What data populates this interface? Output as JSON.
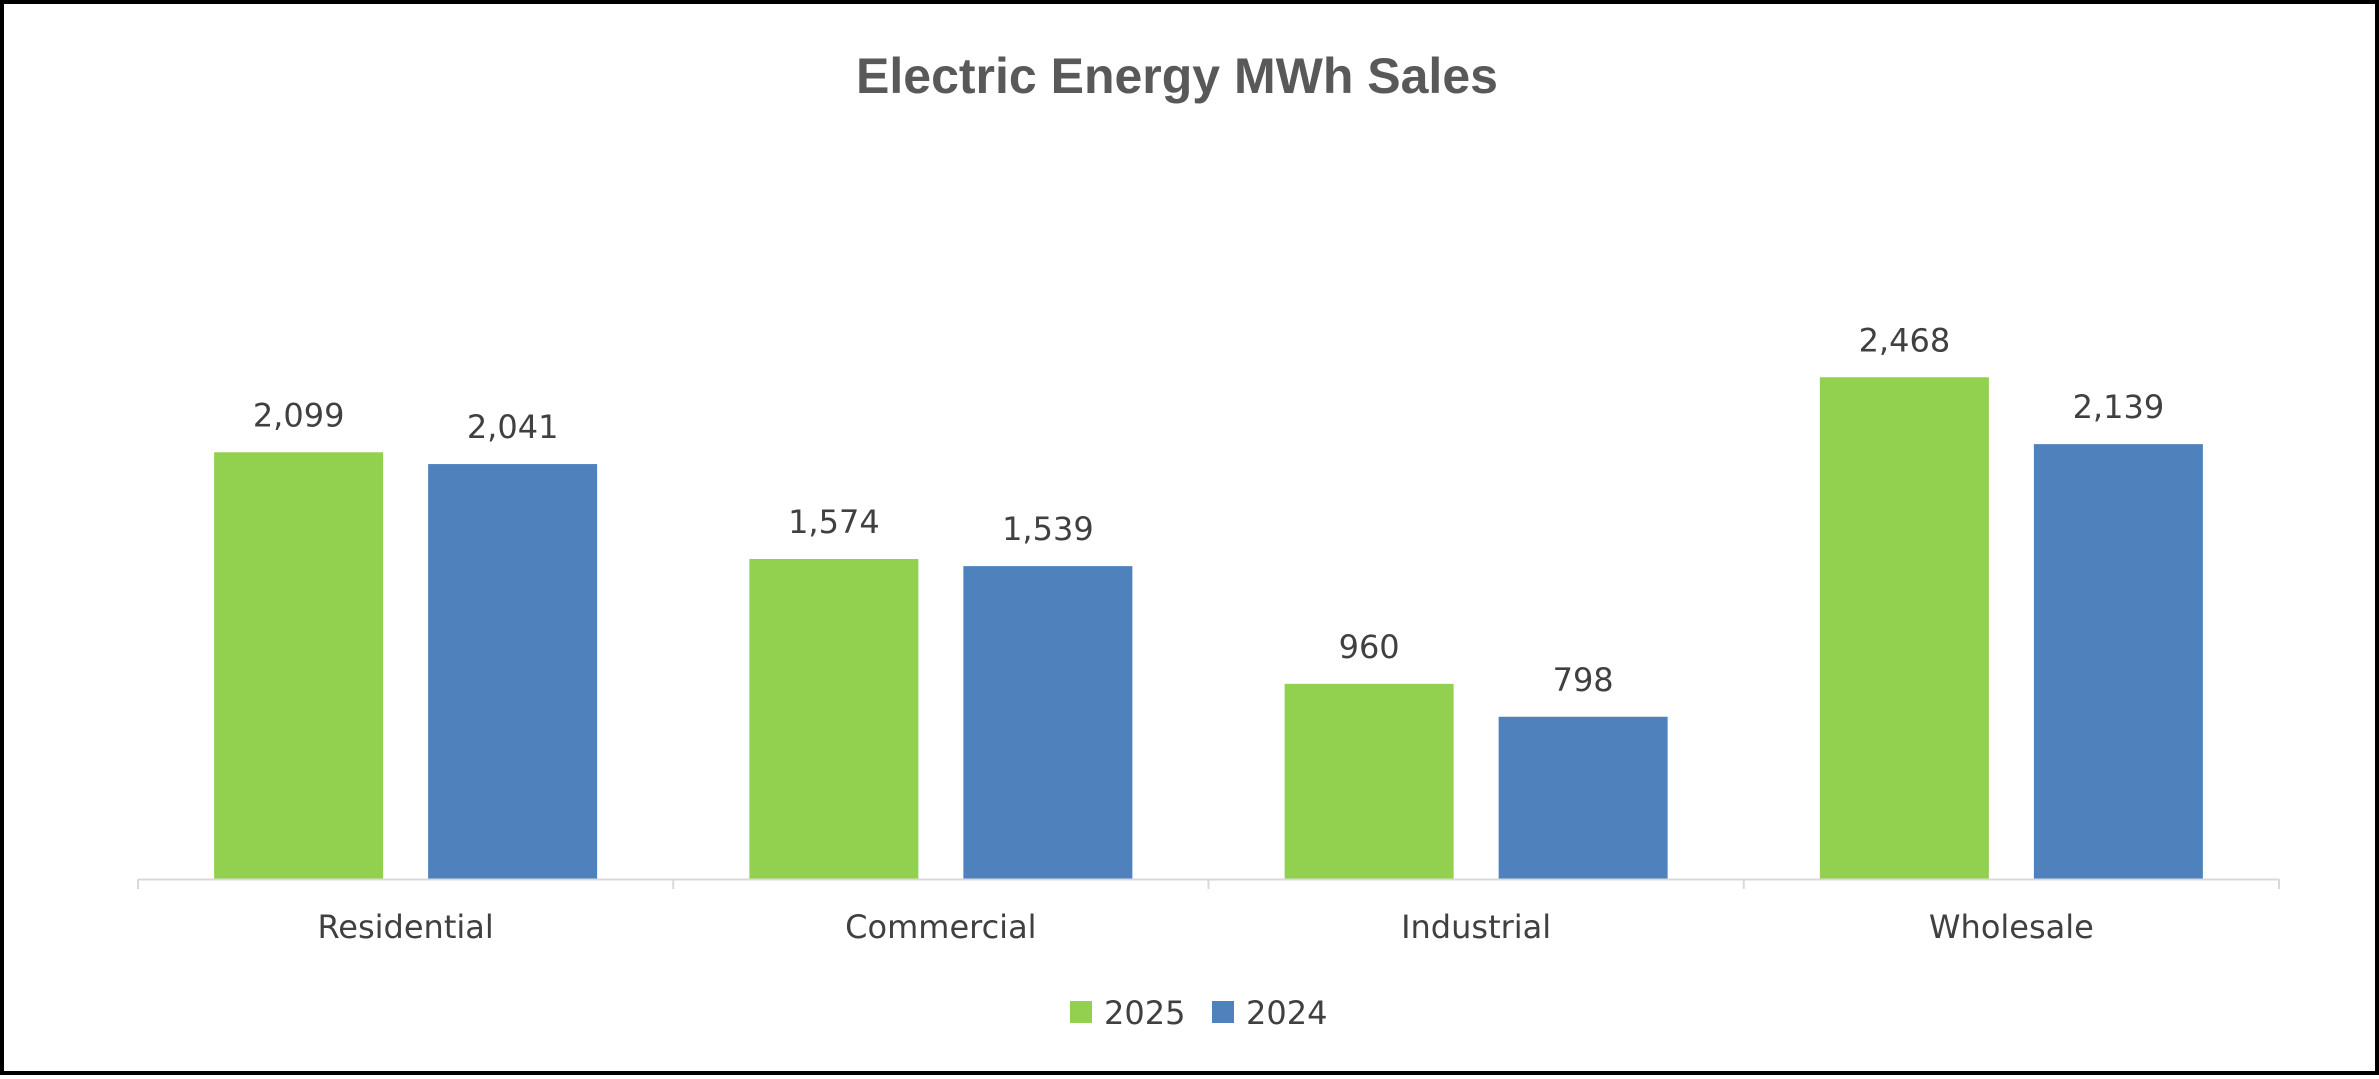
{
  "chart_data": {
    "type": "bar",
    "title": "Electric Energy MWh Sales",
    "xlabel": "",
    "ylabel": "",
    "categories": [
      "Residential",
      "Commercial",
      "Industrial",
      "Wholesale"
    ],
    "series": [
      {
        "name": "2025",
        "color": "#92D050",
        "values": [
          2099,
          1574,
          960,
          2468
        ],
        "labels": [
          "2,099",
          "1,574",
          "960",
          "2,468"
        ]
      },
      {
        "name": "2024",
        "color": "#4F81BD",
        "values": [
          2041,
          1539,
          798,
          2139
        ],
        "labels": [
          "2,041",
          "1,539",
          "798",
          "2,139"
        ]
      }
    ],
    "ylim": [
      0,
      2700
    ],
    "grid": false,
    "legend": "bottom-center"
  }
}
